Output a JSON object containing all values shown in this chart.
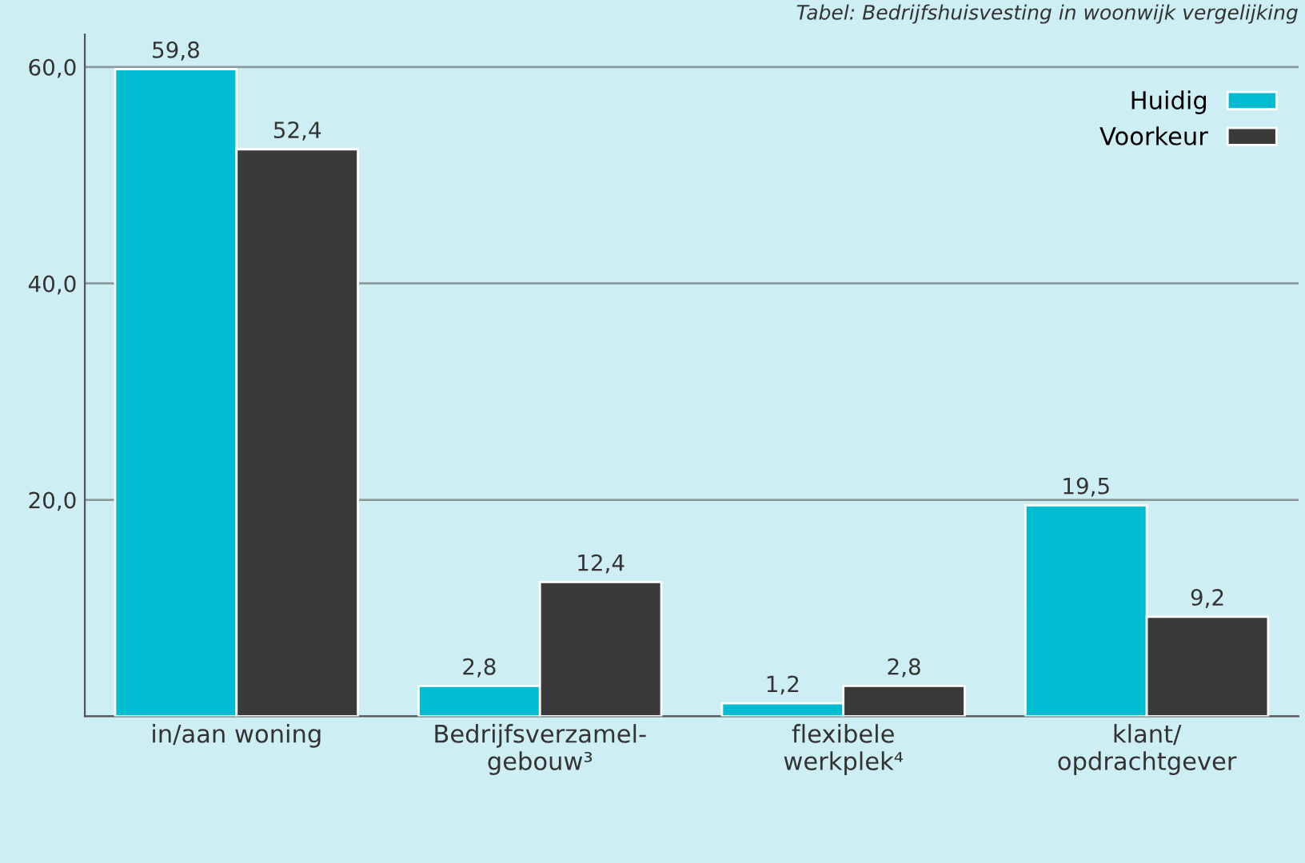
{
  "chart_data": {
    "type": "bar",
    "annotations": [
      "Tabel: Bedrijfshuisvesting in woonwijk vergelijking"
    ],
    "categories": [
      "in/aan woning",
      "Bedrijfsverzamel-\ngebouw³",
      "flexibele\nwerkplek⁴",
      "klant/\nopdrachtgever"
    ],
    "series": [
      {
        "name": "Huidig",
        "color": "#00bcd0",
        "values": [
          59.8,
          2.8,
          1.2,
          19.5
        ],
        "value_labels": [
          "59,8",
          "2,8",
          "1,2",
          "19,5"
        ]
      },
      {
        "name": "Voorkeur",
        "color": "#3a3a3a",
        "values": [
          52.4,
          12.4,
          2.8,
          9.2
        ],
        "value_labels": [
          "52,4",
          "12,4",
          "2,8",
          "9,2"
        ]
      }
    ],
    "ylim": [
      0,
      63
    ],
    "yticks": [
      {
        "value": 0,
        "label": null
      },
      {
        "value": 20,
        "label": "20,0"
      },
      {
        "value": 40,
        "label": "40,0"
      },
      {
        "value": 60,
        "label": "60,0"
      }
    ],
    "grid": "y",
    "legend": "top right"
  }
}
